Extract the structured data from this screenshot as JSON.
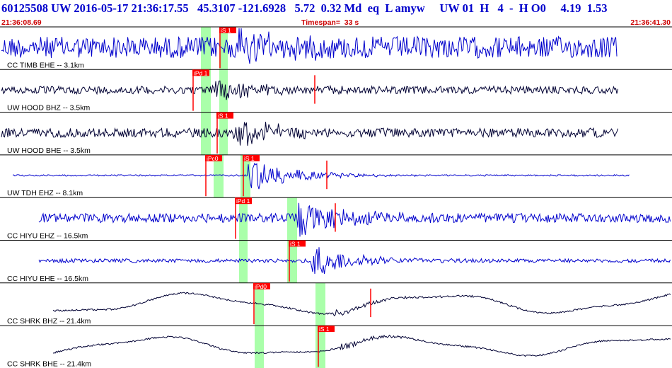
{
  "header": {
    "title": "60125508 UW 2016-05-17 21:36:17.55   45.3107 -121.6928   5.72  0.32 Md  eq  L amyw     UW 01  H   4  -  H O0     4.19  1.53",
    "start_time": "21:36:08.69",
    "timespan": "Timespan=  33 s",
    "end_time": "21:36:41.30"
  },
  "colors": {
    "blue_trace": "#0000cc",
    "dark_trace": "#000033",
    "pick_marker": "#ff0000",
    "pick_window": "#aaffaa",
    "time_text": "#cc0000",
    "title_text": "#0000cc"
  },
  "channels": [
    {
      "label": "CC TIMB EHE -- 3.1km",
      "color": "blue",
      "kind": "noisy",
      "amp": 0.7,
      "burst": 0.9,
      "picks": [
        {
          "label": "iS 1"
        }
      ]
    },
    {
      "label": "UW HOOD BHZ -- 3.5km",
      "color": "dark",
      "kind": "quiet",
      "amp": 0.25,
      "burst": 0.5,
      "picks": [
        {
          "label": "iPd 1"
        }
      ]
    },
    {
      "label": "UW HOOD BHE -- 3.5km",
      "color": "dark",
      "kind": "quiet",
      "amp": 0.3,
      "burst": 0.8,
      "picks": [
        {
          "label": "iS 1"
        }
      ]
    },
    {
      "label": "UW TDH EHZ -- 8.1km",
      "color": "blue",
      "kind": "flat",
      "amp": 0.05,
      "burst": 0.9,
      "picks": [
        {
          "label": "iPc0"
        },
        {
          "label": "iS 1"
        }
      ]
    },
    {
      "label": "CC HIYU EHZ -- 16.5km",
      "color": "blue",
      "kind": "noisy",
      "amp": 0.3,
      "burst": 0.9,
      "picks": [
        {
          "label": "iPd 1"
        }
      ]
    },
    {
      "label": "CC HIYU EHE -- 16.5km",
      "color": "blue",
      "kind": "quiet",
      "amp": 0.12,
      "burst": 0.8,
      "picks": [
        {
          "label": "iS 1"
        }
      ]
    },
    {
      "label": "CC SHRK BHZ -- 21.4km",
      "color": "dark",
      "kind": "wave",
      "amp": 0.75,
      "burst": 0.3,
      "picks": [
        {
          "label": "iPd0"
        }
      ]
    },
    {
      "label": "CC SHRK BHE -- 21.4km",
      "color": "dark",
      "kind": "wave",
      "amp": 0.7,
      "burst": 0.3,
      "picks": [
        {
          "label": "iS 1"
        }
      ]
    }
  ]
}
